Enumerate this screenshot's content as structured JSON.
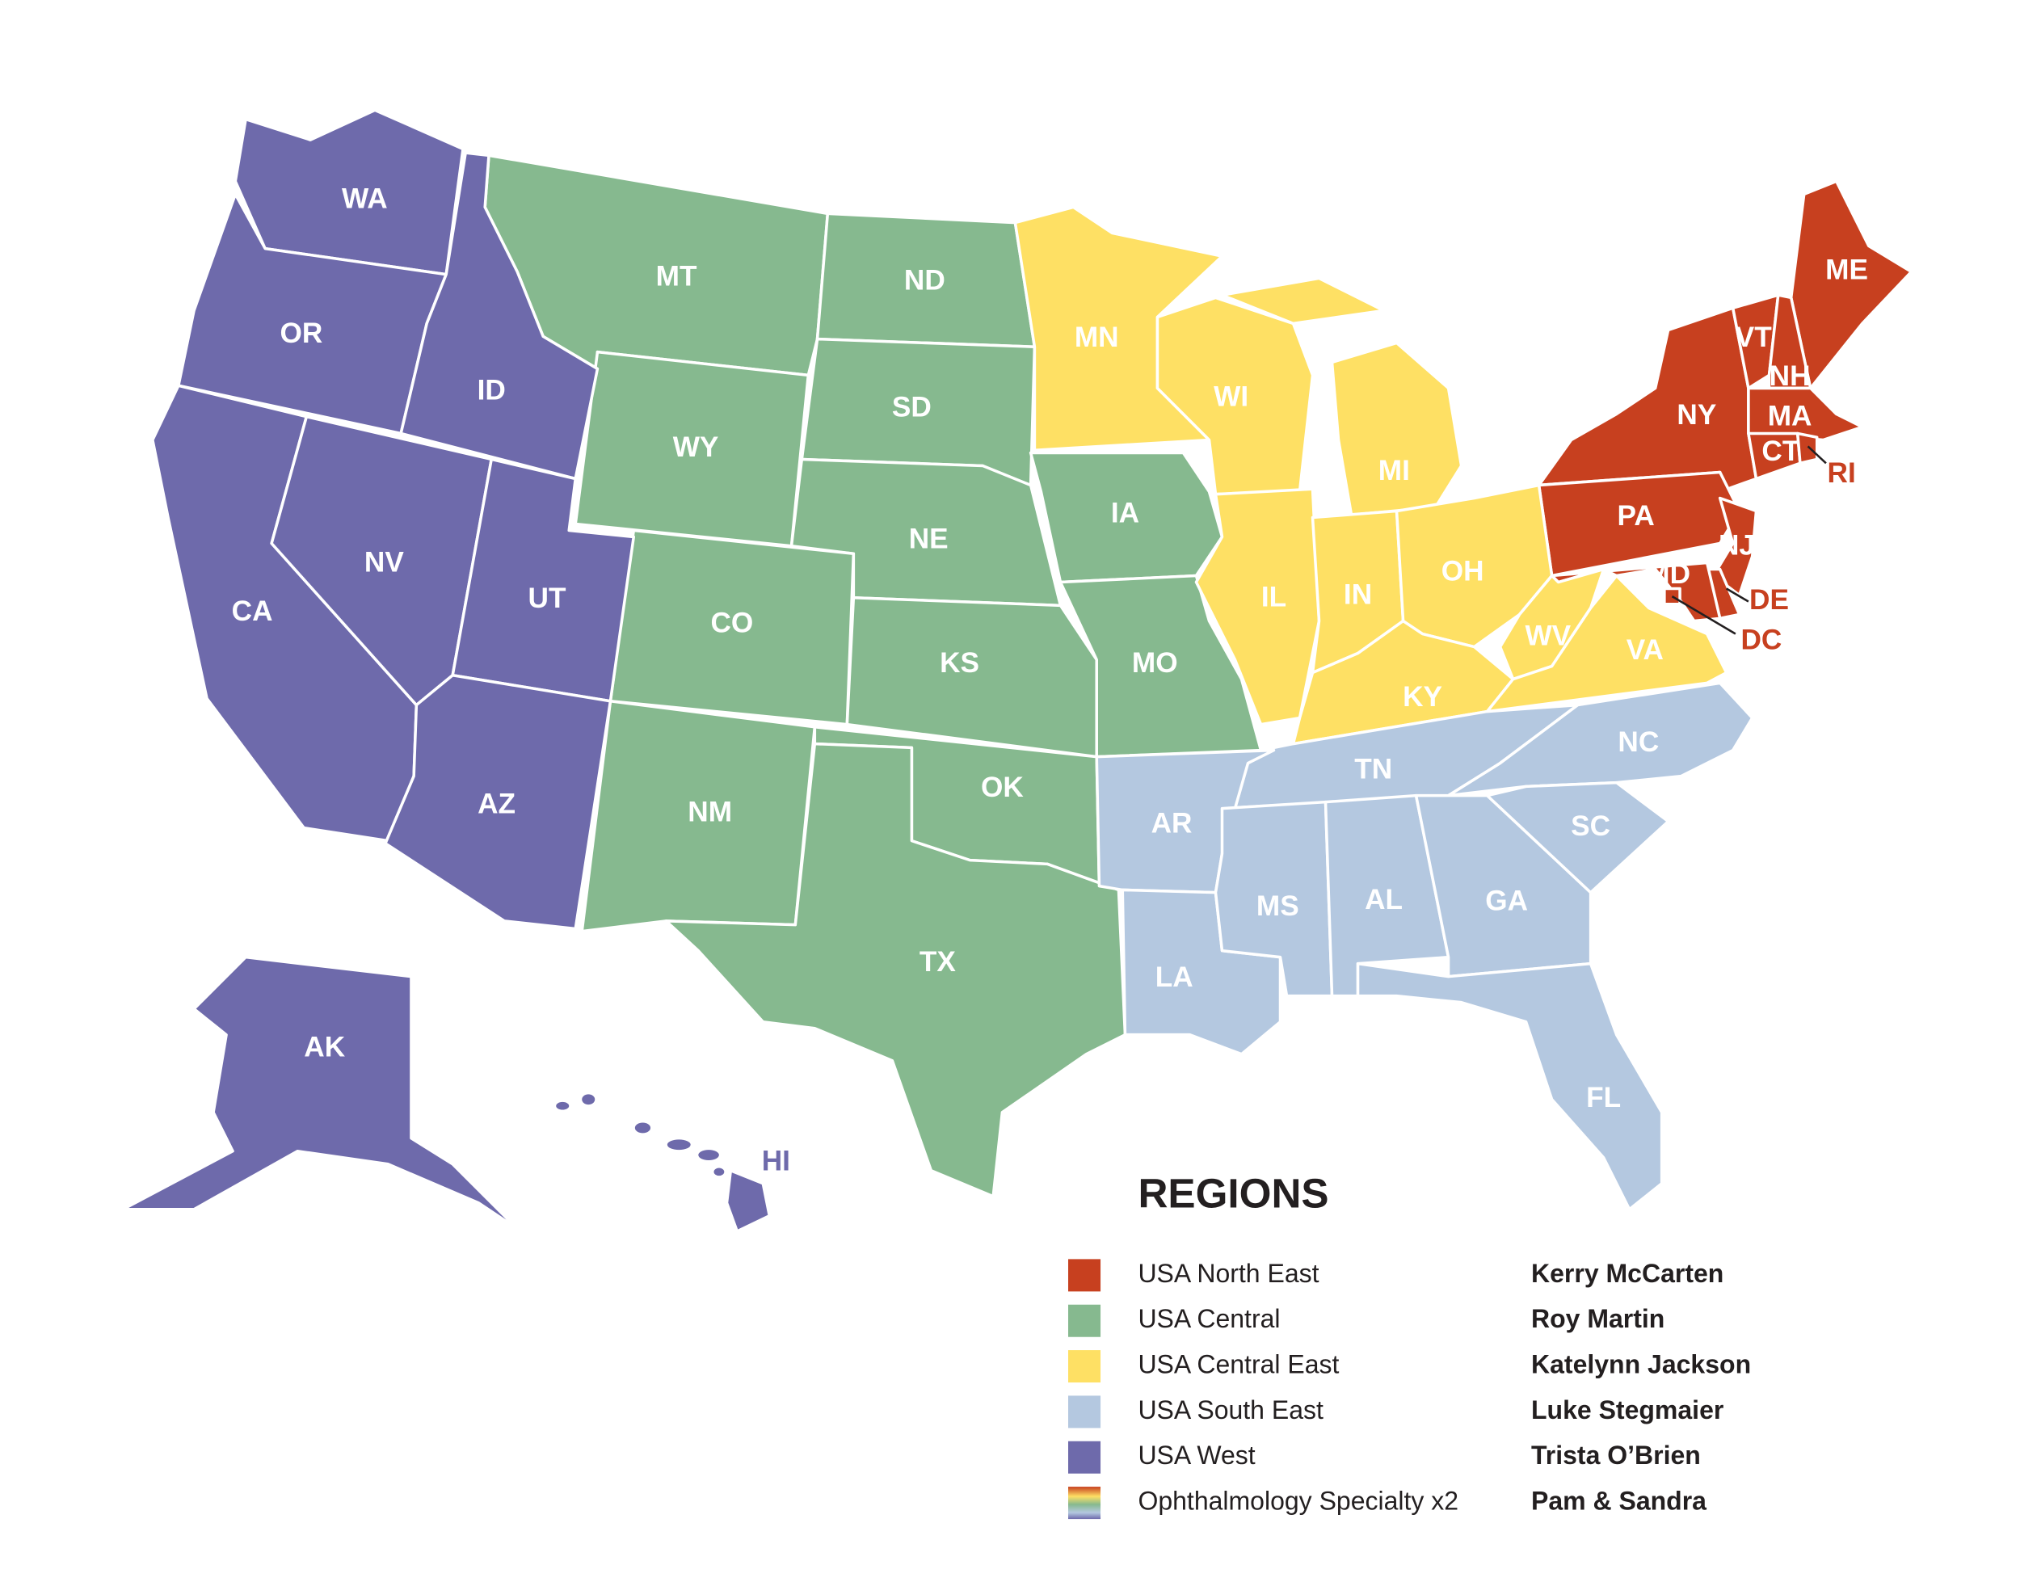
{
  "title": "REGIONS",
  "regions": [
    {
      "name": "USA North East",
      "person": "Kerry McCarten",
      "color": "#c7401f",
      "states": [
        "ME",
        "NY",
        "VT",
        "NH",
        "MA",
        "CT",
        "RI",
        "PA",
        "NJ",
        "DE",
        "MD",
        "DC"
      ]
    },
    {
      "name": "USA Central",
      "person": "Roy Martin",
      "color": "#86b98f",
      "states": [
        "MT",
        "ND",
        "SD",
        "WY",
        "NE",
        "CO",
        "KS",
        "OK",
        "NM",
        "TX",
        "IA",
        "MO"
      ]
    },
    {
      "name": "USA Central East",
      "person": "Katelynn Jackson",
      "color": "#fee064",
      "states": [
        "MN",
        "WI",
        "MI",
        "IL",
        "IN",
        "OH",
        "KY",
        "WV",
        "VA"
      ]
    },
    {
      "name": "USA South East",
      "person": "Luke Stegmaier",
      "color": "#b4c8e0",
      "states": [
        "TN",
        "NC",
        "AR",
        "LA",
        "MS",
        "AL",
        "GA",
        "SC",
        "FL"
      ]
    },
    {
      "name": "USA West",
      "person": "Trista O’Brien",
      "color": "#6e6aab",
      "states": [
        "WA",
        "OR",
        "CA",
        "NV",
        "ID",
        "UT",
        "AZ",
        "AK",
        "HI"
      ]
    },
    {
      "name": "Ophthalmology Specialty x2",
      "person": "Pam & Sandra"
    }
  ]
}
